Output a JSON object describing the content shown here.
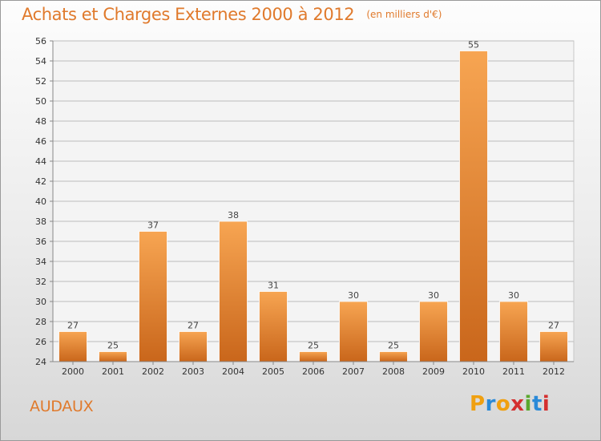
{
  "chart_data": {
    "type": "bar",
    "title": "Achats et Charges Externes 2000 à 2012",
    "unit_note": "(en milliers d'€)",
    "xlabel": "",
    "ylabel": "",
    "categories": [
      "2000",
      "2001",
      "2002",
      "2003",
      "2004",
      "2005",
      "2006",
      "2007",
      "2008",
      "2009",
      "2010",
      "2011",
      "2012"
    ],
    "values": [
      27,
      25,
      37,
      27,
      38,
      31,
      25,
      30,
      25,
      30,
      55,
      30,
      27
    ],
    "ylim": [
      24,
      56
    ],
    "yticks": [
      24,
      26,
      28,
      30,
      32,
      34,
      36,
      38,
      40,
      42,
      44,
      46,
      48,
      50,
      52,
      54,
      56
    ],
    "grid": true,
    "legend": "none",
    "bar_color_top": "#f7a552",
    "bar_color_bottom": "#c9661b",
    "grid_color": "#bdbdbd"
  },
  "footer": {
    "place": "AUDAUX",
    "logo_letters": [
      "P",
      "r",
      "o",
      "x",
      "i",
      "t",
      "i"
    ],
    "logo_colors": [
      "#f0a010",
      "#2a8ad8",
      "#f0a010",
      "#d42f2f",
      "#5aa82e",
      "#2a8ad8",
      "#d42f2f"
    ]
  }
}
